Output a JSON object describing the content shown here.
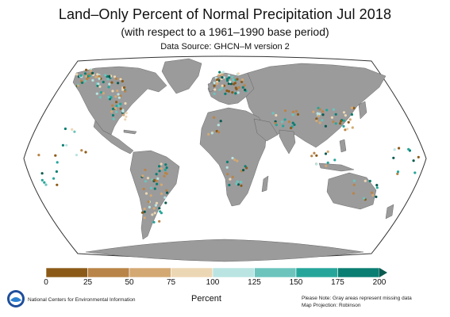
{
  "title": "Land–Only Percent of Normal Precipitation Jul 2018",
  "subtitle": "(with respect to a 1961–1990 base period)",
  "source": "Data Source: GHCN–M version 2",
  "colorbar": {
    "title": "Percent",
    "ticks": [
      "0",
      "25",
      "50",
      "75",
      "100",
      "125",
      "150",
      "175",
      "200"
    ],
    "colors": [
      "#8c5a18",
      "#b98448",
      "#d4a872",
      "#ecd7b4",
      "#b9e4e2",
      "#6cc4bd",
      "#26a69a",
      "#0a7e72"
    ],
    "end_color": "#0a5a50"
  },
  "footer": {
    "org": "National Centers for Environmental Information",
    "note_line1": "Please Note: Gray areas represent missing data",
    "note_line2": "Map Projection: Robinson"
  },
  "icons": {
    "logo": "noaa-logo-icon"
  },
  "map_colors": {
    "land": "#9b9b9b",
    "ocean": "#ffffff",
    "border": "#555555"
  }
}
